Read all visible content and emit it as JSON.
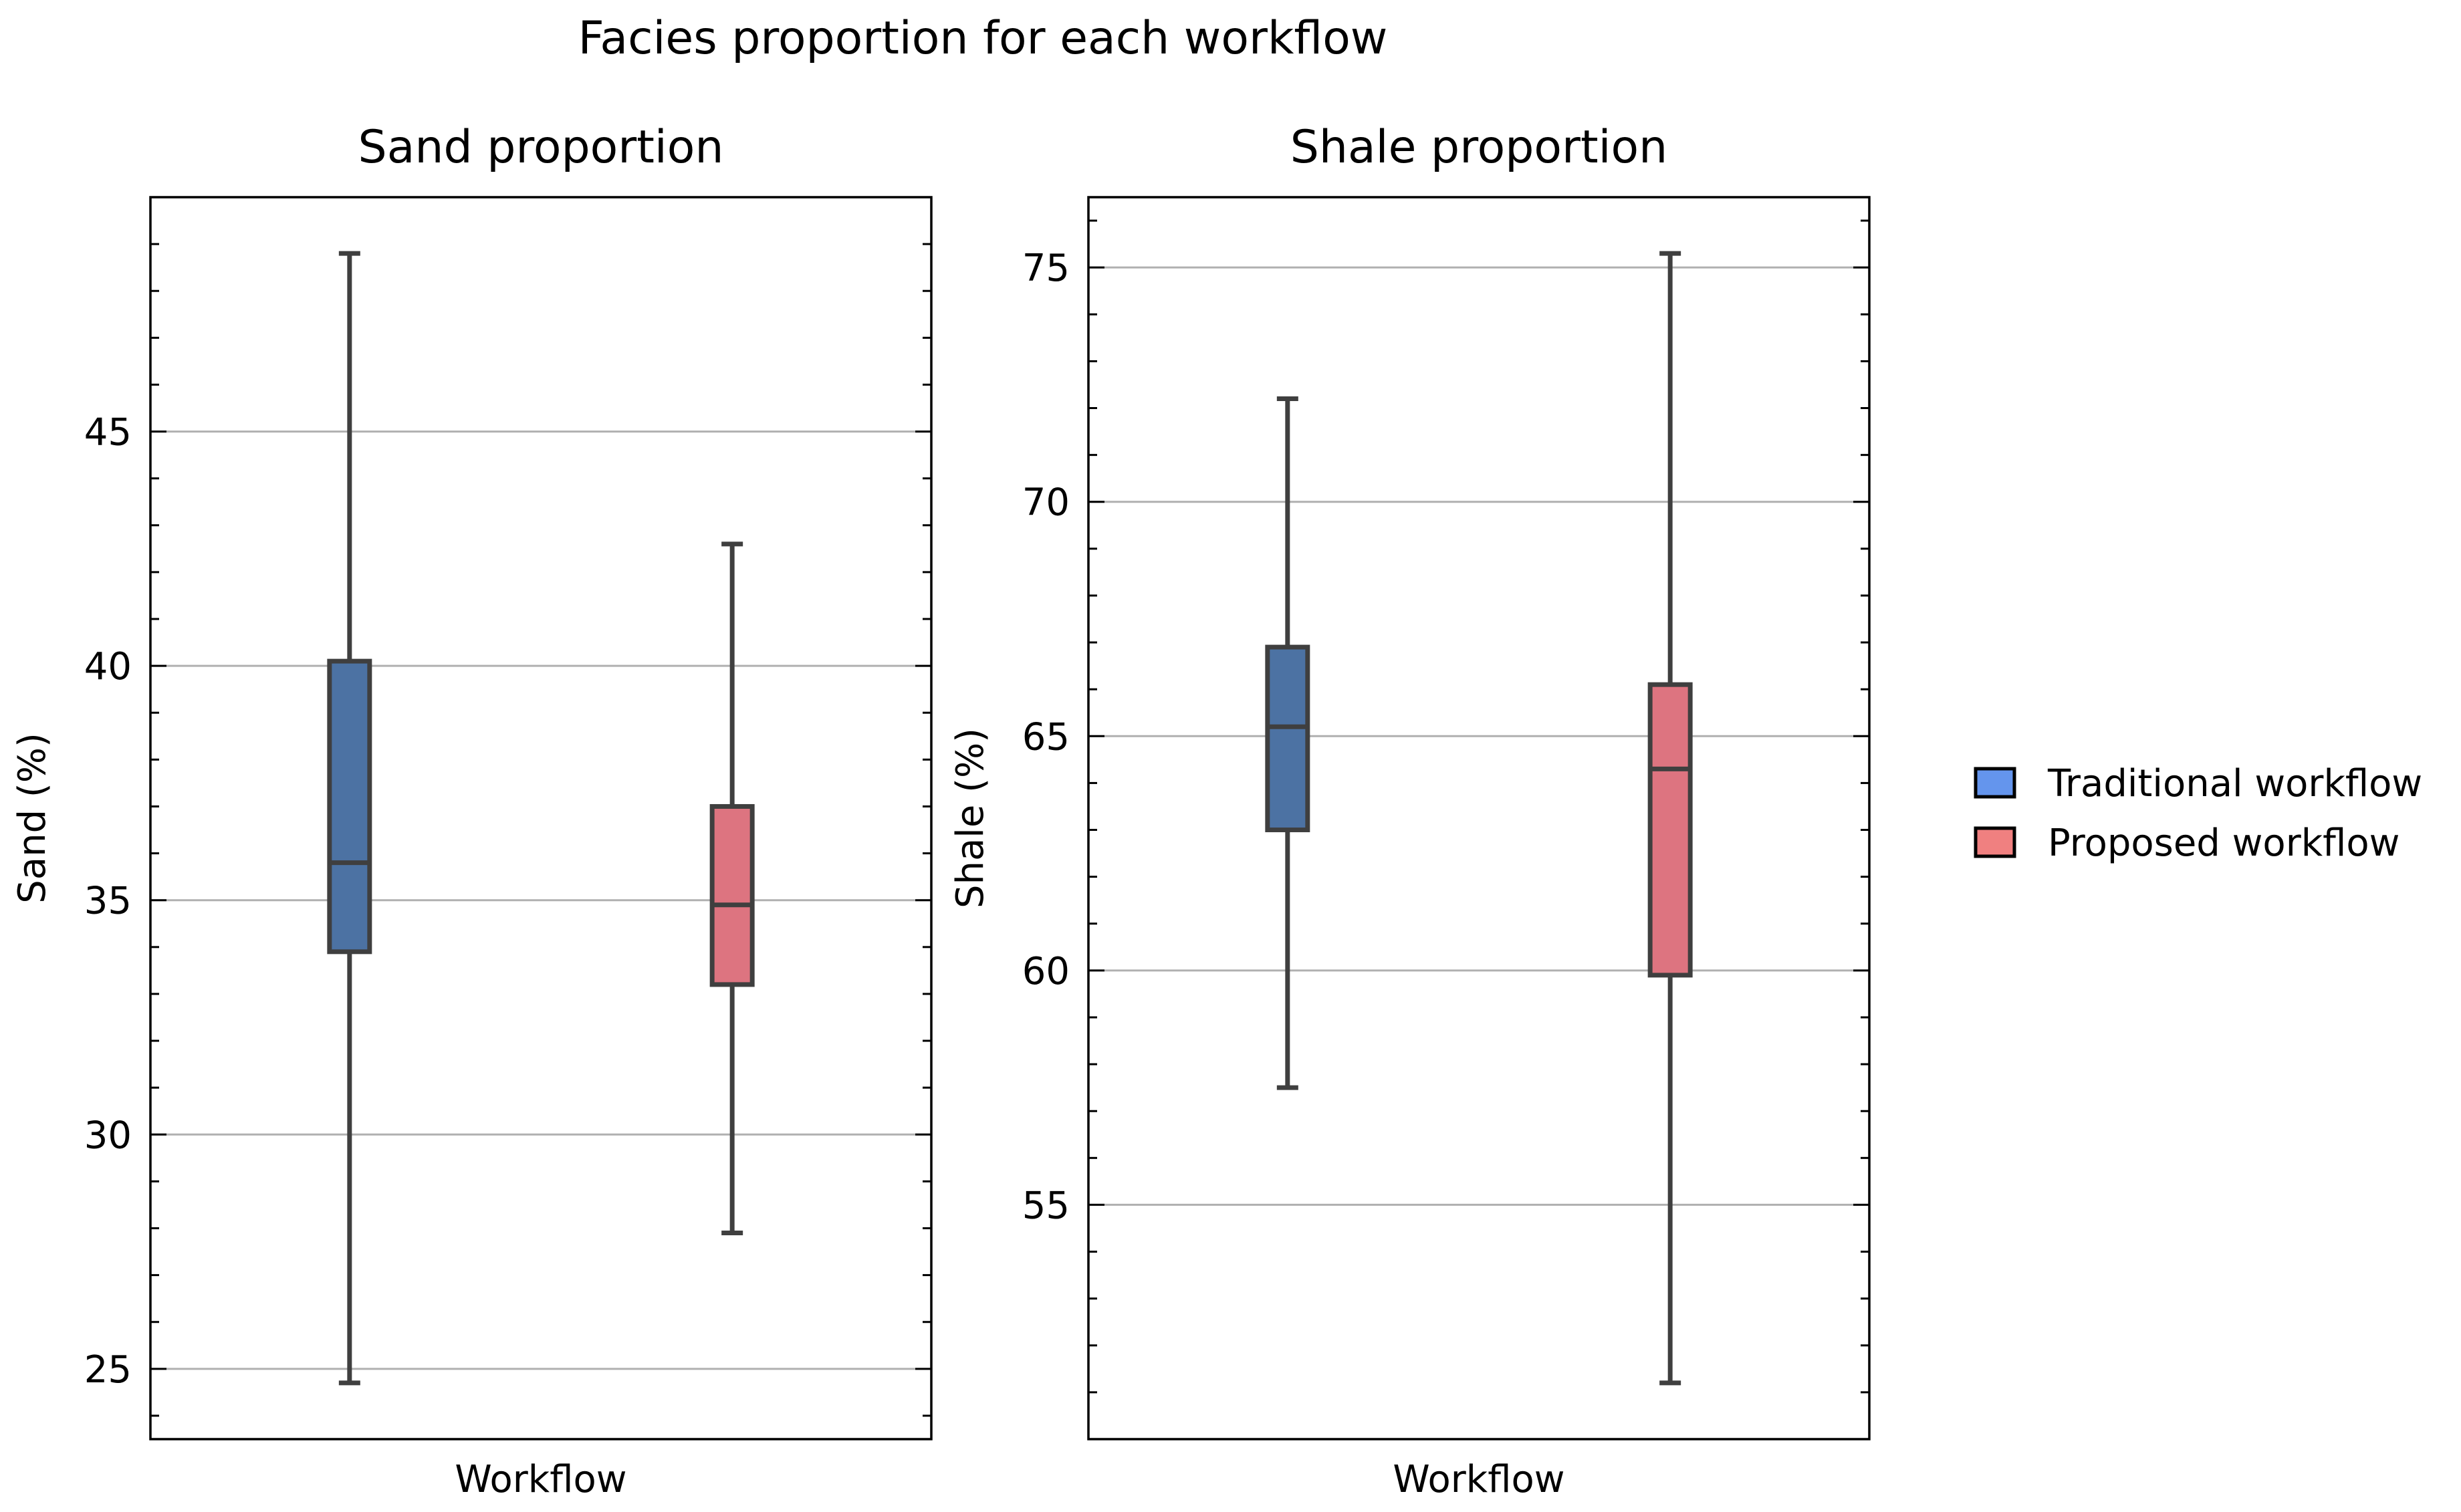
{
  "figure_title": "Facies proportion for each workflow",
  "colors": {
    "traditional_fill": "#4C72A3",
    "proposed_fill": "#DD7480",
    "traditional_legend": "#6495ED",
    "proposed_legend": "#F08080",
    "box_edge": "#3F3F3F",
    "grid": "#B0B0B0"
  },
  "legend": {
    "placement": "right",
    "entries": [
      "Traditional workflow",
      "Proposed workflow"
    ]
  },
  "chart_data": [
    {
      "type": "box",
      "title": "Sand proportion",
      "xlabel": "Workflow",
      "ylabel": "Sand (%)",
      "ylim": [
        23.5,
        50.0
      ],
      "yticks": [
        25,
        30,
        35,
        40,
        45
      ],
      "minor_step": 1,
      "grid": "y",
      "series": [
        {
          "name": "Traditional workflow",
          "whisker_low": 24.7,
          "q1": 33.9,
          "median": 35.8,
          "q3": 40.1,
          "whisker_high": 48.8
        },
        {
          "name": "Proposed workflow",
          "whisker_low": 27.9,
          "q1": 33.2,
          "median": 34.9,
          "q3": 37.0,
          "whisker_high": 42.6
        }
      ]
    },
    {
      "type": "box",
      "title": "Shale proportion",
      "xlabel": "Workflow",
      "ylabel": "Shale (%)",
      "ylim": [
        50.0,
        76.5
      ],
      "yticks": [
        55,
        60,
        65,
        70,
        75
      ],
      "minor_step": 1,
      "grid": "y",
      "series": [
        {
          "name": "Traditional workflow",
          "whisker_low": 57.5,
          "q1": 63.0,
          "median": 65.2,
          "q3": 66.9,
          "whisker_high": 72.2
        },
        {
          "name": "Proposed workflow",
          "whisker_low": 51.2,
          "q1": 59.9,
          "median": 64.3,
          "q3": 66.1,
          "whisker_high": 75.3
        }
      ]
    }
  ]
}
